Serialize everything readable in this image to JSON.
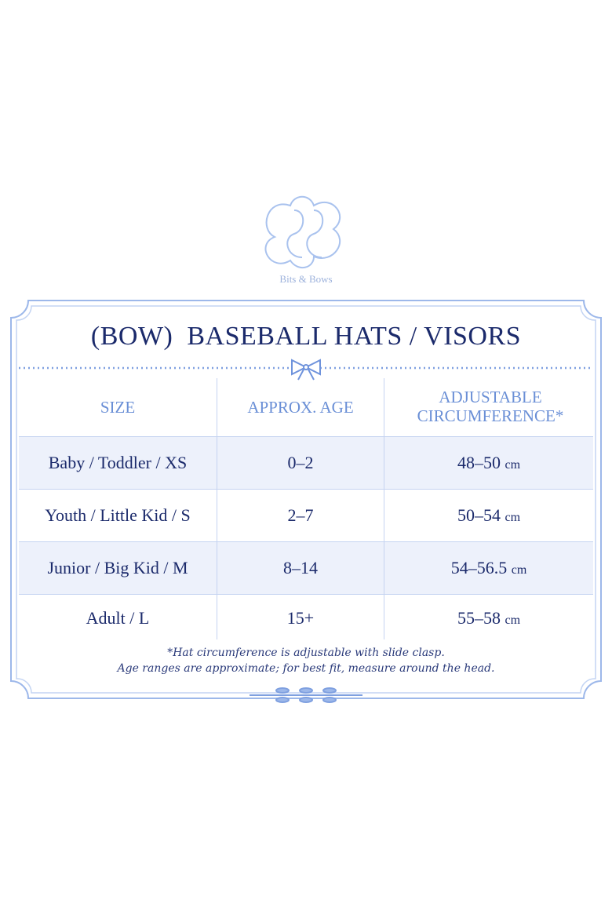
{
  "brand": "Bits & Bows",
  "title": "(BOW)  BASEBALL HATS / VISORS",
  "table": {
    "headers": [
      "SIZE",
      "APPROX. AGE",
      "ADJUSTABLE CIRCUMFERENCE*"
    ],
    "rows": [
      [
        "Baby / Toddler / XS",
        "0–2",
        "48–50",
        "cm"
      ],
      [
        "Youth / Little Kid / S",
        "2–7",
        "50–54",
        "cm"
      ],
      [
        "Junior / Big Kid / M",
        "8–14",
        "54–56.5",
        "cm"
      ],
      [
        "Adult / L",
        "15+",
        "55–58",
        "cm"
      ]
    ]
  },
  "notes": [
    "*Hat circumference is adjustable with slide clasp.",
    "Age ranges are approximate; for best fit, measure around the head."
  ]
}
